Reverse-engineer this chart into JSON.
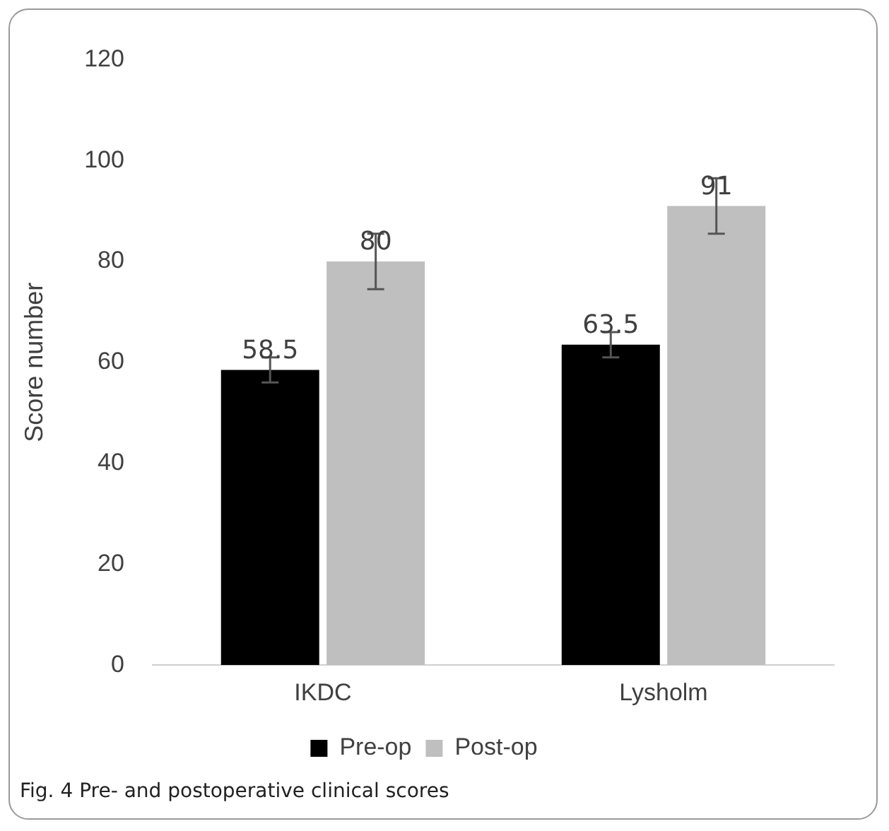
{
  "chart_data": {
    "type": "bar",
    "ylabel": "Score number",
    "categories": [
      "IKDC",
      "Lysholm"
    ],
    "series": [
      {
        "name": "Pre-op",
        "color": "#000000",
        "values": [
          58.5,
          63.5
        ],
        "errors": [
          2.5,
          2.5
        ]
      },
      {
        "name": "Post-op",
        "color": "#bfbfbf",
        "values": [
          80,
          91
        ],
        "errors": [
          5.5,
          5.5
        ]
      }
    ],
    "ylim": [
      0,
      120
    ],
    "yticks": [
      0,
      20,
      40,
      60,
      80,
      100,
      120
    ],
    "grid": false,
    "legend": "bottom",
    "data_labels": true,
    "annotations": [
      "Fig. 4 Pre- and postoperative clinical scores"
    ]
  }
}
